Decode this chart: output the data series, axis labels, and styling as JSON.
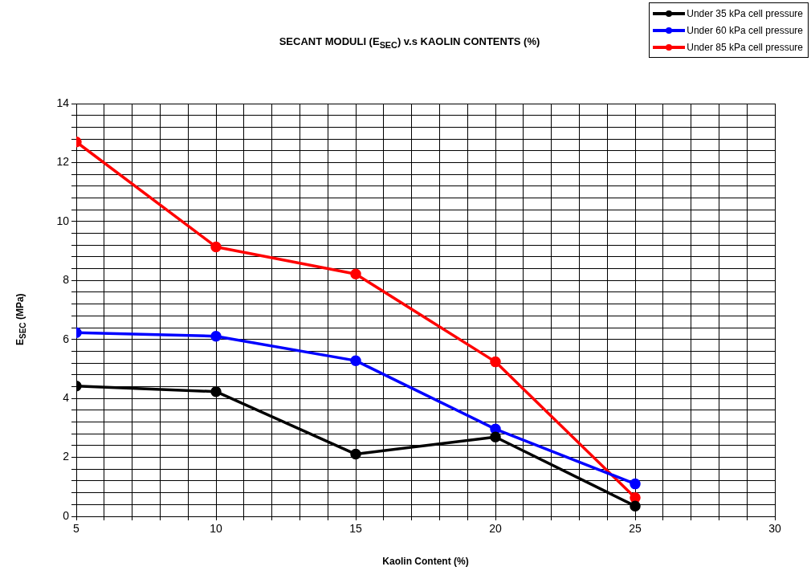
{
  "chart_data": {
    "type": "line",
    "title": "SECANT MODULI (E$_{SEC}$) v.s KAOLIN CONTENTS (%)",
    "xlabel": "Kaolin Content (%)",
    "ylabel": "E$_{SEC}$  (MPa)",
    "x": [
      5,
      10,
      15,
      20,
      25
    ],
    "series": [
      {
        "name": "Under 35 kPa cell pressure",
        "color": "#000000",
        "values": [
          4.42,
          4.23,
          2.11,
          2.69,
          0.35
        ]
      },
      {
        "name": "Under 60 kPa cell pressure",
        "color": "#0000ff",
        "values": [
          6.23,
          6.11,
          5.28,
          2.96,
          1.1
        ]
      },
      {
        "name": "Under 85 kPa cell pressure",
        "color": "#ff0000",
        "values": [
          12.7,
          9.14,
          8.22,
          5.24,
          0.63
        ]
      }
    ],
    "xlim": [
      5,
      30
    ],
    "xticks": [
      5,
      {
        "value": 6,
        "label": null
      },
      {
        "value": 7,
        "label": null
      },
      {
        "value": 8,
        "label": null
      },
      {
        "value": 9,
        "label": null
      },
      10,
      {
        "value": 11,
        "label": null
      },
      {
        "value": 12,
        "label": null
      },
      {
        "value": 13,
        "label": null
      },
      {
        "value": 14,
        "label": null
      },
      15,
      {
        "value": 16,
        "label": null
      },
      {
        "value": 17,
        "label": null
      },
      {
        "value": 18,
        "label": null
      },
      {
        "value": 19,
        "label": null
      },
      20,
      {
        "value": 21,
        "label": null
      },
      {
        "value": 22,
        "label": null
      },
      {
        "value": 23,
        "label": null
      },
      {
        "value": 24,
        "label": null
      },
      25,
      {
        "value": 26,
        "label": null
      },
      {
        "value": 27,
        "label": null
      },
      {
        "value": 28,
        "label": null
      },
      {
        "value": 29,
        "label": null
      },
      30
    ],
    "ylim": [
      0,
      14
    ],
    "yticks": [
      0,
      {
        "value": 0.4,
        "label": null
      },
      {
        "value": 0.8,
        "label": null
      },
      {
        "value": 1.2,
        "label": null
      },
      {
        "value": 1.6,
        "label": null
      },
      2,
      {
        "value": 2.4,
        "label": null
      },
      {
        "value": 2.8,
        "label": null
      },
      {
        "value": 3.2,
        "label": null
      },
      {
        "value": 3.6,
        "label": null
      },
      4,
      {
        "value": 4.4,
        "label": null
      },
      {
        "value": 4.8,
        "label": null
      },
      {
        "value": 5.2,
        "label": null
      },
      {
        "value": 5.6,
        "label": null
      },
      6,
      {
        "value": 6.4,
        "label": null
      },
      {
        "value": 6.8,
        "label": null
      },
      {
        "value": 7.2,
        "label": null
      },
      {
        "value": 7.6,
        "label": null
      },
      8,
      {
        "value": 8.4,
        "label": null
      },
      {
        "value": 8.8,
        "label": null
      },
      {
        "value": 9.2,
        "label": null
      },
      {
        "value": 9.6,
        "label": null
      },
      10,
      {
        "value": 10.4,
        "label": null
      },
      {
        "value": 10.8,
        "label": null
      },
      {
        "value": 11.2,
        "label": null
      },
      {
        "value": 11.6,
        "label": null
      },
      12,
      {
        "value": 12.4,
        "label": null
      },
      {
        "value": 12.8,
        "label": null
      },
      {
        "value": 13.2,
        "label": null
      },
      {
        "value": 13.6,
        "label": null
      },
      14
    ],
    "grid": true,
    "legend": "top right",
    "marker": "circle",
    "line_style": "solid"
  }
}
